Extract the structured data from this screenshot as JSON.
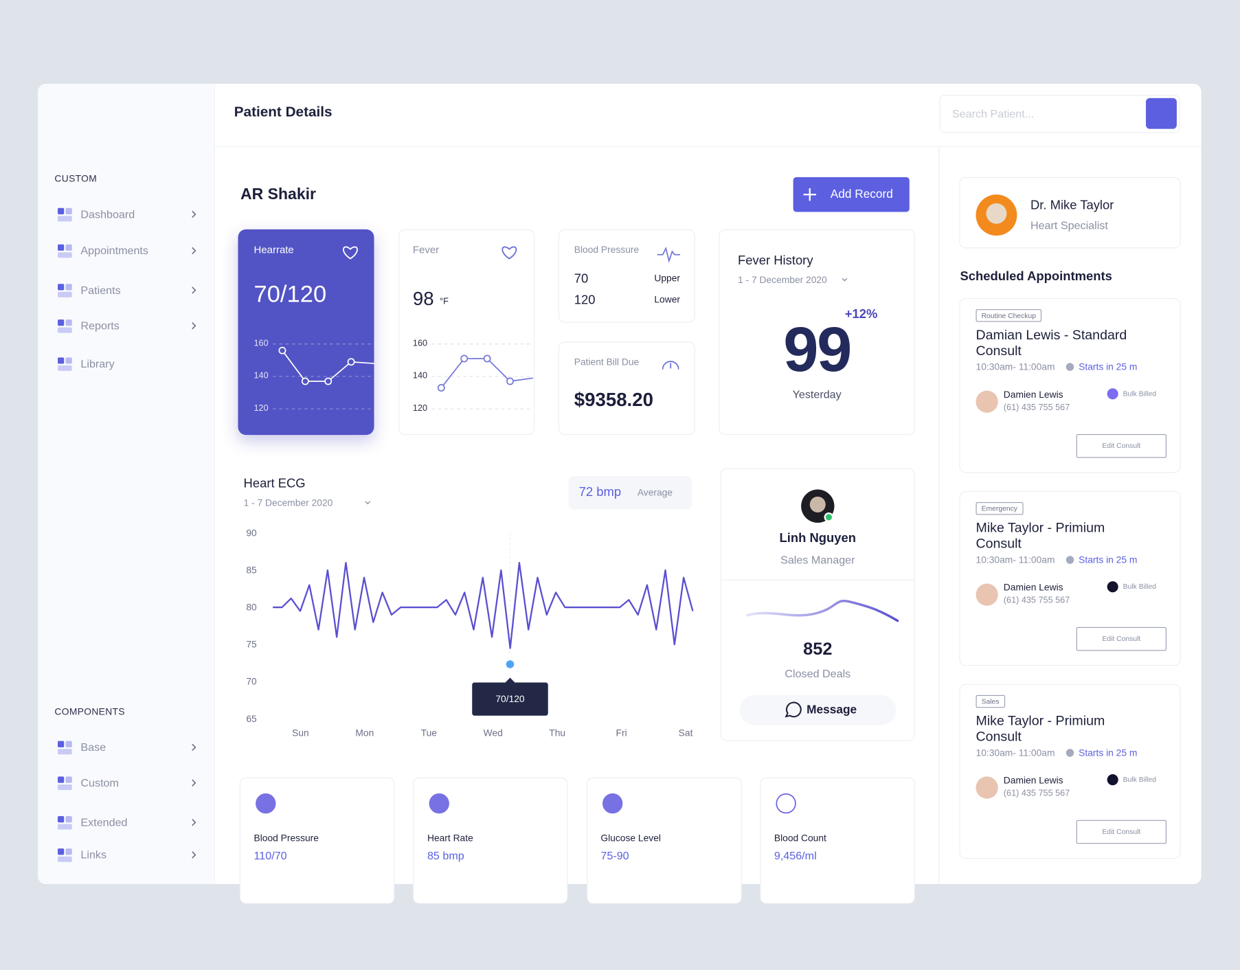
{
  "sidebar": {
    "sections": [
      {
        "title": "CUSTOM",
        "items": [
          "Dashboard",
          "Appointments",
          "Patients",
          "Reports",
          "Library"
        ]
      },
      {
        "title": "COMPONENTS",
        "items": [
          "Base",
          "Custom",
          "Extended",
          "Links"
        ]
      }
    ]
  },
  "header": {
    "title": "Patient Details",
    "search_placeholder": "Search Patient..."
  },
  "patient": {
    "name": "AR Shakir",
    "add_button": "Add Record"
  },
  "hearrate": {
    "label": "Hearrate",
    "value": "70/120",
    "ylim": [
      120,
      160
    ],
    "yticks": [
      160,
      140,
      120
    ],
    "values": [
      156,
      137,
      137,
      149,
      148
    ]
  },
  "fever": {
    "label": "Fever",
    "value": "98",
    "unit": "°F",
    "ylim": [
      120,
      160
    ],
    "yticks": [
      160,
      140,
      120
    ],
    "values": [
      133,
      151,
      151,
      137,
      139
    ]
  },
  "blood_pressure": {
    "label": "Blood Pressure",
    "rows": [
      {
        "value": "70",
        "label": "Upper"
      },
      {
        "value": "120",
        "label": "Lower"
      }
    ]
  },
  "bill": {
    "label": "Patient Bill Due",
    "value": "$9358.20"
  },
  "fever_history": {
    "title": "Fever History",
    "range": "1 - 7 December 2020",
    "value": "99",
    "change": "+12%",
    "caption": "Yesterday"
  },
  "ecg": {
    "title": "Heart ECG",
    "range": "1 - 7 December 2020",
    "average_value": "72 bmp",
    "average_label": "Average",
    "ylim": [
      65,
      90
    ],
    "yticks": [
      90,
      85,
      80,
      75,
      70,
      65
    ],
    "categories": [
      "Sun",
      "Mon",
      "Tue",
      "Wed",
      "Thu",
      "Fri",
      "Sat"
    ],
    "values": [
      80,
      80,
      81.2,
      79.5,
      83,
      77,
      85,
      76,
      86,
      77,
      84,
      78,
      82,
      79,
      80,
      80,
      80,
      80,
      80,
      81,
      79,
      82,
      77,
      84,
      76,
      85,
      74.5,
      86,
      77,
      84,
      79,
      82,
      80,
      80,
      80,
      80,
      80,
      80,
      80,
      81,
      79,
      83,
      77,
      85,
      75,
      84,
      79.5
    ],
    "tooltip": "70/120"
  },
  "profile": {
    "name": "Linh Nguyen",
    "role": "Sales Manager",
    "value": "852",
    "caption": "Closed Deals",
    "button": "Message"
  },
  "stats": [
    {
      "label": "Blood Pressure",
      "value": "110/70"
    },
    {
      "label": "Heart Rate",
      "value": "85 bmp"
    },
    {
      "label": "Glucose Level",
      "value": "75-90"
    },
    {
      "label": "Blood Count",
      "value": "9,456/ml"
    }
  ],
  "doctor": {
    "name": "Dr. Mike Taylor",
    "role": "Heart Specialist"
  },
  "appointments_title": "Scheduled Appointments",
  "appointments": [
    {
      "tag": "Routine Checkup",
      "title": "Damian Lewis - Standard Consult",
      "time": "10:30am- 11:00am",
      "starts": "Starts in 25 m",
      "person": "Damien Lewis",
      "phone": "(61) 435 755 567",
      "billing": "Bulk Billed",
      "billing_color": "#7b6cf0",
      "button": "Edit Consult"
    },
    {
      "tag": "Emergency",
      "title": "Mike Taylor - Primium Consult",
      "time": "10:30am- 11:00am",
      "starts": "Starts in 25 m",
      "person": "Damien Lewis",
      "phone": "(61) 435 755 567",
      "billing": "Bulk Billed",
      "billing_color": "#12122e",
      "button": "Edit Consult"
    },
    {
      "tag": "Sales",
      "title": "Mike Taylor - Primium Consult",
      "time": "10:30am- 11:00am",
      "starts": "Starts in 25 m",
      "person": "Damien Lewis",
      "phone": "(61) 435 755 567",
      "billing": "Bulk Billed",
      "billing_color": "#12122e",
      "button": "Edit Consult"
    }
  ]
}
